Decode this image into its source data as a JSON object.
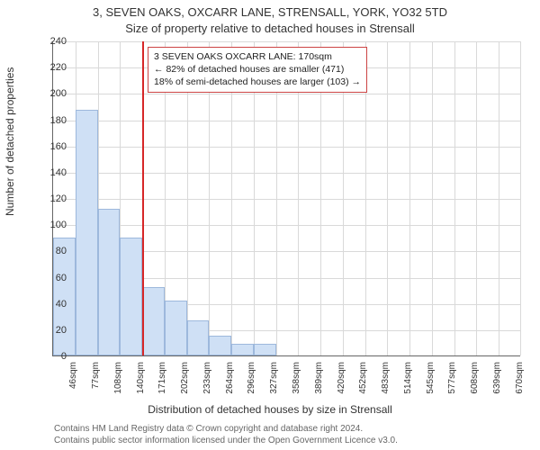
{
  "titles": {
    "line1": "3, SEVEN OAKS, OXCARR LANE, STRENSALL, YORK, YO32 5TD",
    "line2": "Size of property relative to detached houses in Strensall"
  },
  "axes": {
    "ylabel": "Number of detached properties",
    "xlabel": "Distribution of detached houses by size in Strensall"
  },
  "footnote": {
    "line1": "Contains HM Land Registry data © Crown copyright and database right 2024.",
    "line2": "Contains public sector information licensed under the Open Government Licence v3.0."
  },
  "chart": {
    "type": "histogram",
    "ylim": [
      0,
      240
    ],
    "ytick_step": 20,
    "bar_fill": "#cfe0f5",
    "bar_stroke": "#9db8dc",
    "grid_color": "#d9d9d9",
    "background_color": "#ffffff",
    "reference_line": {
      "x_category_index": 4,
      "color": "#d62728"
    },
    "categories": [
      "46sqm",
      "77sqm",
      "108sqm",
      "140sqm",
      "171sqm",
      "202sqm",
      "233sqm",
      "264sqm",
      "296sqm",
      "327sqm",
      "358sqm",
      "389sqm",
      "420sqm",
      "452sqm",
      "483sqm",
      "514sqm",
      "545sqm",
      "577sqm",
      "608sqm",
      "639sqm",
      "670sqm"
    ],
    "values": [
      90,
      187,
      112,
      90,
      52,
      42,
      27,
      15,
      9,
      9,
      0,
      0,
      0,
      0,
      0,
      0,
      0,
      0,
      0,
      0,
      0
    ]
  },
  "annotation": {
    "line1": "3 SEVEN OAKS OXCARR LANE: 170sqm",
    "line2": "← 82% of detached houses are smaller (471)",
    "line3": "18% of semi-detached houses are larger (103) →",
    "border_color": "#c44"
  }
}
